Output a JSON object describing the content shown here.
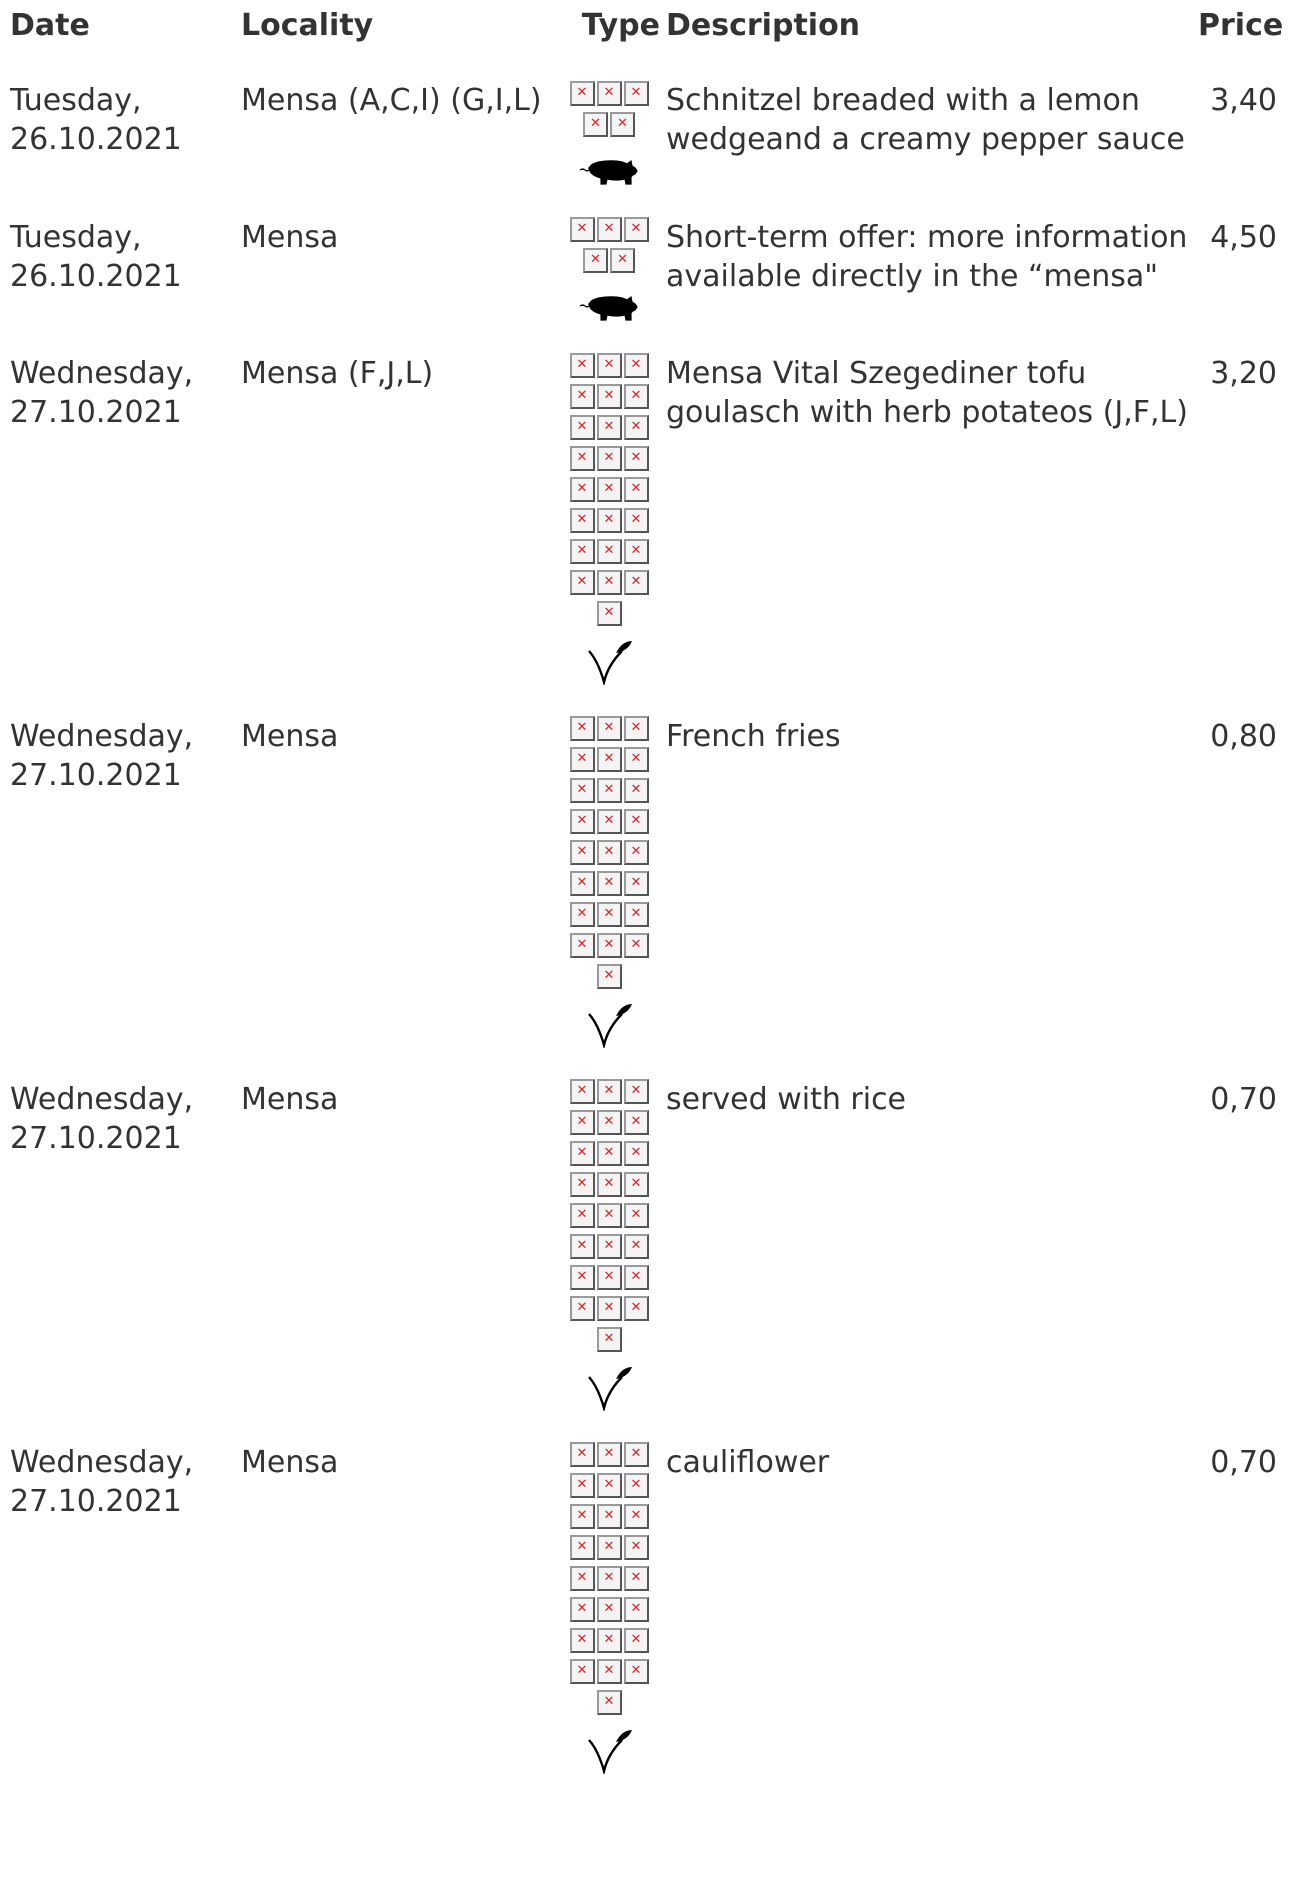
{
  "headers": {
    "date": "Date",
    "locality": "Locality",
    "type": "Type",
    "description": "Description",
    "price": "Price"
  },
  "rows": [
    {
      "date_line1": "Tuesday,",
      "date_line2": "26.10.2021",
      "locality": "Mensa (A,C,I) (G,I,L)",
      "description": "Schnitzel breaded with a lemon wedgeand a creamy pepper sauce",
      "price": "3,40",
      "broken_icon_count": 5,
      "symbol": "pig-icon"
    },
    {
      "date_line1": "Tuesday,",
      "date_line2": "26.10.2021",
      "locality": "Mensa",
      "description": "Short-term offer: more information available directly in the “mensa\"",
      "price": "4,50",
      "broken_icon_count": 5,
      "symbol": "pig-icon"
    },
    {
      "date_line1": "Wednesday,",
      "date_line2": "27.10.2021",
      "locality": "Mensa (F,J,L)",
      "description": "Mensa Vital Szegediner tofu goulasch with herb potateos (J,F,L)",
      "price": "3,20",
      "broken_icon_count": 25,
      "symbol": "vegan-leaf-icon"
    },
    {
      "date_line1": "Wednesday,",
      "date_line2": "27.10.2021",
      "locality": "Mensa",
      "description": "French fries",
      "price": "0,80",
      "broken_icon_count": 25,
      "symbol": "vegan-leaf-icon"
    },
    {
      "date_line1": "Wednesday,",
      "date_line2": "27.10.2021",
      "locality": "Mensa",
      "description": "served with rice",
      "price": "0,70",
      "broken_icon_count": 25,
      "symbol": "vegan-leaf-icon"
    },
    {
      "date_line1": "Wednesday,",
      "date_line2": "27.10.2021",
      "locality": "Mensa",
      "description": "cauliflower",
      "price": "0,70",
      "broken_icon_count": 25,
      "symbol": "vegan-leaf-icon"
    }
  ],
  "colors": {
    "text": "#333333",
    "broken_icon_mark": "#d8262a",
    "broken_icon_border": "#9a9a9a"
  }
}
